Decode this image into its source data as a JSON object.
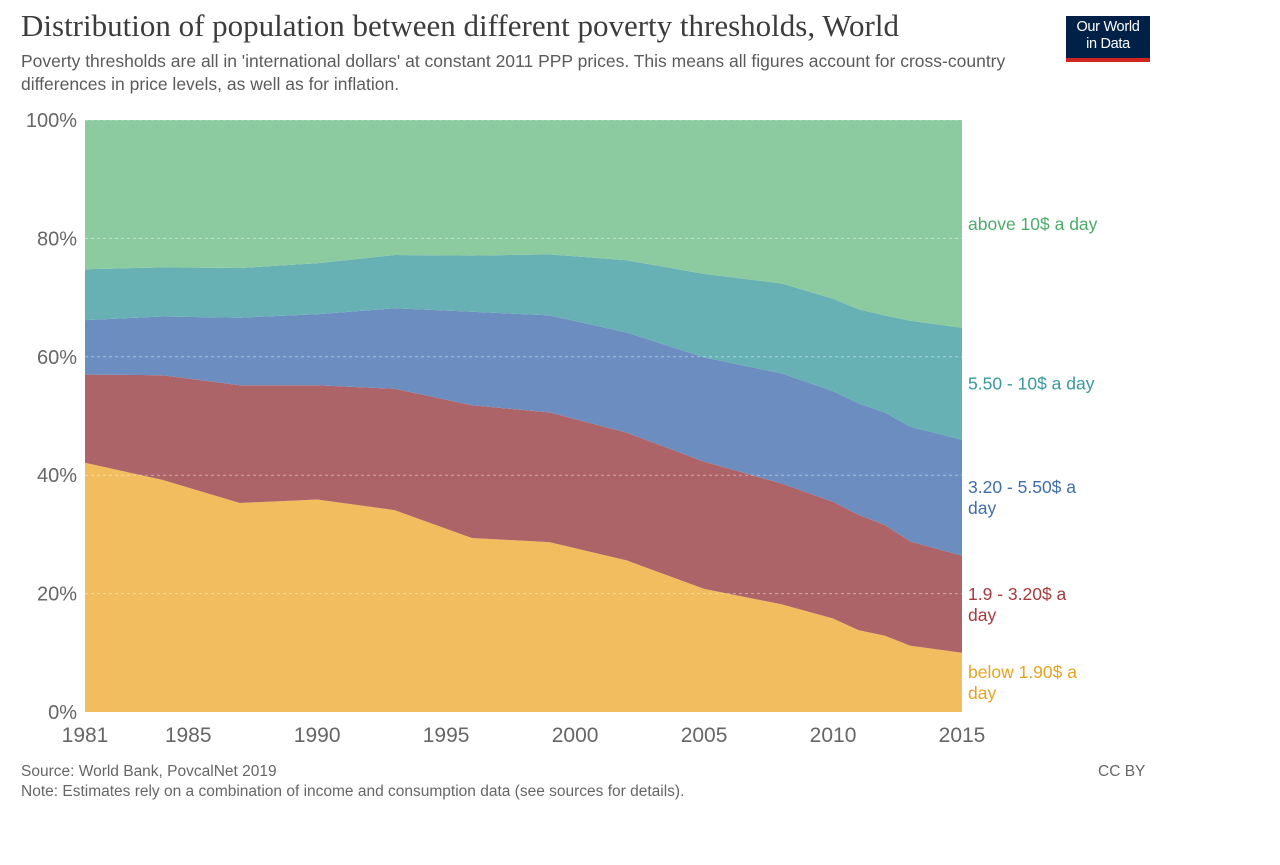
{
  "header": {
    "title": "Distribution of population between different poverty thresholds, World",
    "subtitle": "Poverty thresholds are all in 'international dollars' at constant 2011 PPP prices. This means all figures account for cross-country differences in price levels, as well as for inflation.",
    "logo_line1": "Our World",
    "logo_line2": "in Data"
  },
  "footer": {
    "source": "Source: World Bank, PovcalNet 2019",
    "note": "Note: Estimates rely on a combination of income and consumption data (see sources for details).",
    "license": "CC BY"
  },
  "chart_data": {
    "type": "area",
    "stacked": true,
    "x": [
      1981,
      1984,
      1987,
      1990,
      1993,
      1996,
      1999,
      2002,
      2005,
      2008,
      2010,
      2011,
      2012,
      2013,
      2015
    ],
    "series": [
      {
        "name": "below 1.90$ a day",
        "color": "#f2bd5f",
        "values": [
          42.1,
          39.2,
          35.3,
          35.9,
          34.1,
          29.4,
          28.7,
          25.6,
          20.8,
          18.2,
          15.8,
          13.8,
          12.9,
          11.2,
          10.0
        ]
      },
      {
        "name": "1.9 - 3.20$ a day",
        "color": "#ad6468",
        "values": [
          14.9,
          17.7,
          19.9,
          19.3,
          20.5,
          22.4,
          21.9,
          21.6,
          21.5,
          20.4,
          19.7,
          19.5,
          18.7,
          17.6,
          16.4
        ]
      },
      {
        "name": "3.20 - 5.50$ a day",
        "color": "#6b8dbf",
        "values": [
          9.2,
          9.9,
          11.4,
          12.0,
          13.6,
          15.8,
          16.4,
          16.9,
          17.6,
          18.6,
          18.7,
          18.8,
          19.0,
          19.4,
          19.6
        ]
      },
      {
        "name": "5.50 - 10$ a day",
        "color": "#67b1b4",
        "values": [
          8.6,
          8.3,
          8.4,
          8.6,
          9.0,
          9.5,
          10.3,
          12.2,
          14.1,
          15.2,
          15.6,
          15.9,
          16.4,
          17.9,
          18.9
        ]
      },
      {
        "name": "above 10$ a day",
        "color": "#8ccb9f",
        "values": [
          25.2,
          24.9,
          25.0,
          24.2,
          22.8,
          22.9,
          22.7,
          23.7,
          26.0,
          27.6,
          30.2,
          32.0,
          33.0,
          33.9,
          35.1
        ]
      }
    ],
    "label_colors": [
      "#e8a321",
      "#a63a3e",
      "#3f6ea8",
      "#3799a0",
      "#4cab6a"
    ],
    "xticks": [
      "1981",
      "1985",
      "1990",
      "1995",
      "2000",
      "2005",
      "2010",
      "2015"
    ],
    "yticks": [
      "0%",
      "20%",
      "40%",
      "60%",
      "80%",
      "100%"
    ],
    "xlim": [
      1981,
      2015
    ],
    "ylim": [
      0,
      100
    ],
    "grid": true,
    "legend": "right, inline labels"
  }
}
